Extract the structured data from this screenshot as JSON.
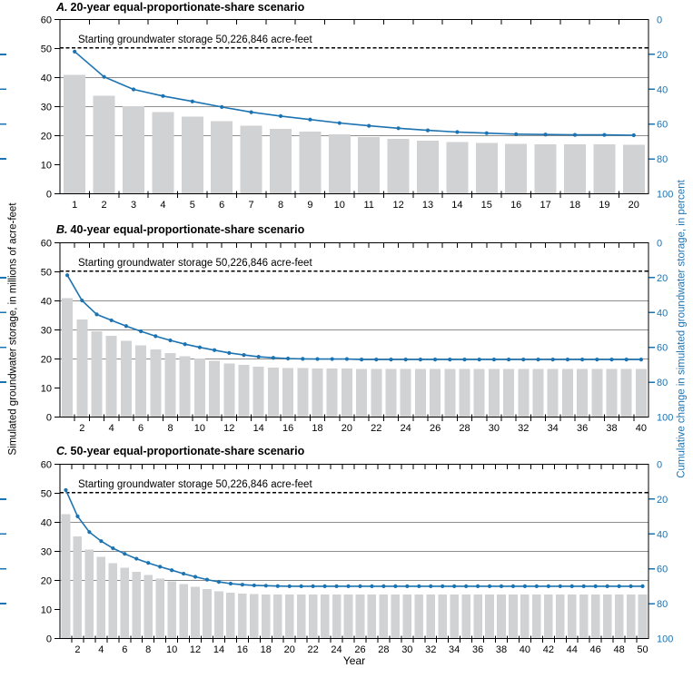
{
  "figure": {
    "xlabel": "Year",
    "ylabel_left": "Simulated groundwater storage, in millions of acre-feet",
    "ylabel_right": "Cumulative change in simulated groundwater storage, in percent"
  },
  "colors": {
    "blue": "#1c73b1",
    "bar": "#d0d2d3",
    "grid": "#8e8e8e",
    "axis": "#000000",
    "baseline_dash": "#000000"
  },
  "axes": {
    "left_ticks": [
      0,
      10,
      20,
      30,
      40,
      50,
      60
    ],
    "right_ticks": [
      0,
      20,
      40,
      60,
      80,
      100
    ],
    "right_minor_edge_ticks": [
      20,
      40,
      60,
      80
    ],
    "gridlines": [
      20,
      30,
      40
    ],
    "left_range": [
      0,
      60
    ],
    "right_range": [
      0,
      100
    ],
    "right_inverted": true,
    "baseline_value_maf": 50.226846
  },
  "chart_data": [
    {
      "type": "bar",
      "title_letter": "A.",
      "title_text": "20-year equal-proportionate-share scenario",
      "annotation": "Starting groundwater storage 50,226,846 acre-feet",
      "x_tick_labels": [
        1,
        2,
        3,
        4,
        5,
        6,
        7,
        8,
        9,
        10,
        11,
        12,
        13,
        14,
        15,
        16,
        17,
        18,
        19,
        20
      ],
      "series": [
        {
          "name": "Simulated groundwater storage, in millions of acre-feet",
          "axis": "left",
          "values": [
            41.0,
            33.7,
            30.1,
            28.2,
            26.6,
            25.0,
            23.5,
            22.4,
            21.4,
            20.4,
            19.6,
            18.9,
            18.3,
            17.8,
            17.5,
            17.2,
            17.1,
            17.0,
            17.0,
            16.9
          ]
        },
        {
          "name": "Cumulative change in simulated groundwater storage, in percent",
          "axis": "right",
          "values": [
            18.4,
            32.9,
            40.1,
            43.9,
            47.0,
            50.2,
            53.2,
            55.4,
            57.4,
            59.4,
            61.0,
            62.4,
            63.6,
            64.6,
            65.2,
            65.8,
            66.0,
            66.2,
            66.2,
            66.4
          ]
        }
      ]
    },
    {
      "type": "bar",
      "title_letter": "B.",
      "title_text": "40-year equal-proportionate-share scenario",
      "annotation": "Starting groundwater storage 50,226,846 acre-feet",
      "x_tick_labels": [
        2,
        4,
        6,
        8,
        10,
        12,
        14,
        16,
        18,
        20,
        22,
        24,
        26,
        28,
        30,
        32,
        34,
        36,
        38,
        40
      ],
      "series": [
        {
          "name": "Simulated groundwater storage, in millions of acre-feet",
          "axis": "left",
          "values": [
            40.9,
            33.6,
            29.6,
            27.9,
            26.2,
            24.7,
            23.3,
            22.1,
            21.0,
            20.1,
            19.3,
            18.5,
            17.9,
            17.4,
            17.1,
            16.9,
            16.8,
            16.7,
            16.7,
            16.7,
            16.6,
            16.6,
            16.6,
            16.6,
            16.6,
            16.6,
            16.6,
            16.6,
            16.6,
            16.6,
            16.6,
            16.6,
            16.6,
            16.6,
            16.6,
            16.6,
            16.6,
            16.6,
            16.6,
            16.6
          ]
        },
        {
          "name": "Cumulative change in simulated groundwater storage, in percent",
          "axis": "right",
          "values": [
            18.6,
            33.1,
            41.1,
            44.5,
            47.8,
            50.8,
            53.6,
            56.0,
            58.2,
            60.0,
            61.6,
            63.2,
            64.4,
            65.4,
            66.0,
            66.4,
            66.6,
            66.7,
            66.7,
            66.7,
            67.0,
            67.0,
            67.0,
            67.0,
            67.0,
            67.0,
            67.0,
            67.0,
            67.0,
            67.0,
            67.0,
            67.0,
            67.0,
            67.0,
            67.0,
            67.0,
            67.0,
            67.0,
            67.0,
            67.0
          ]
        }
      ]
    },
    {
      "type": "bar",
      "title_letter": "C.",
      "title_text": "50-year equal-proportionate-share scenario",
      "annotation": "Starting groundwater storage 50,226,846 acre-feet",
      "x_tick_labels": [
        2,
        4,
        6,
        8,
        10,
        12,
        14,
        16,
        18,
        20,
        22,
        24,
        26,
        28,
        30,
        32,
        34,
        36,
        38,
        40,
        42,
        44,
        46,
        48,
        50
      ],
      "series": [
        {
          "name": "Simulated groundwater storage, in millions of acre-feet",
          "axis": "left",
          "values": [
            42.8,
            35.2,
            30.7,
            28.1,
            26.0,
            24.4,
            23.0,
            21.8,
            20.7,
            19.7,
            18.7,
            17.8,
            17.0,
            16.3,
            15.8,
            15.5,
            15.3,
            15.2,
            15.1,
            15.1,
            15.1,
            15.1,
            15.1,
            15.1,
            15.1,
            15.1,
            15.1,
            15.1,
            15.1,
            15.1,
            15.1,
            15.1,
            15.1,
            15.1,
            15.1,
            15.1,
            15.1,
            15.1,
            15.1,
            15.1,
            15.1,
            15.1,
            15.1,
            15.1,
            15.1,
            15.1,
            15.1,
            15.1,
            15.1,
            15.1
          ]
        },
        {
          "name": "Cumulative change in simulated groundwater storage, in percent",
          "axis": "right",
          "values": [
            14.8,
            29.9,
            38.9,
            44.1,
            48.2,
            51.4,
            54.2,
            56.6,
            58.8,
            60.8,
            62.8,
            64.6,
            66.2,
            67.5,
            68.5,
            69.1,
            69.5,
            69.7,
            69.9,
            70.0,
            70.0,
            70.0,
            70.0,
            70.0,
            70.0,
            70.0,
            70.0,
            70.0,
            70.0,
            70.0,
            70.0,
            70.0,
            70.0,
            70.0,
            70.0,
            70.0,
            70.0,
            70.0,
            70.0,
            70.0,
            70.0,
            70.0,
            70.0,
            70.0,
            70.0,
            70.0,
            70.0,
            70.0,
            70.0,
            70.0
          ]
        }
      ]
    }
  ]
}
